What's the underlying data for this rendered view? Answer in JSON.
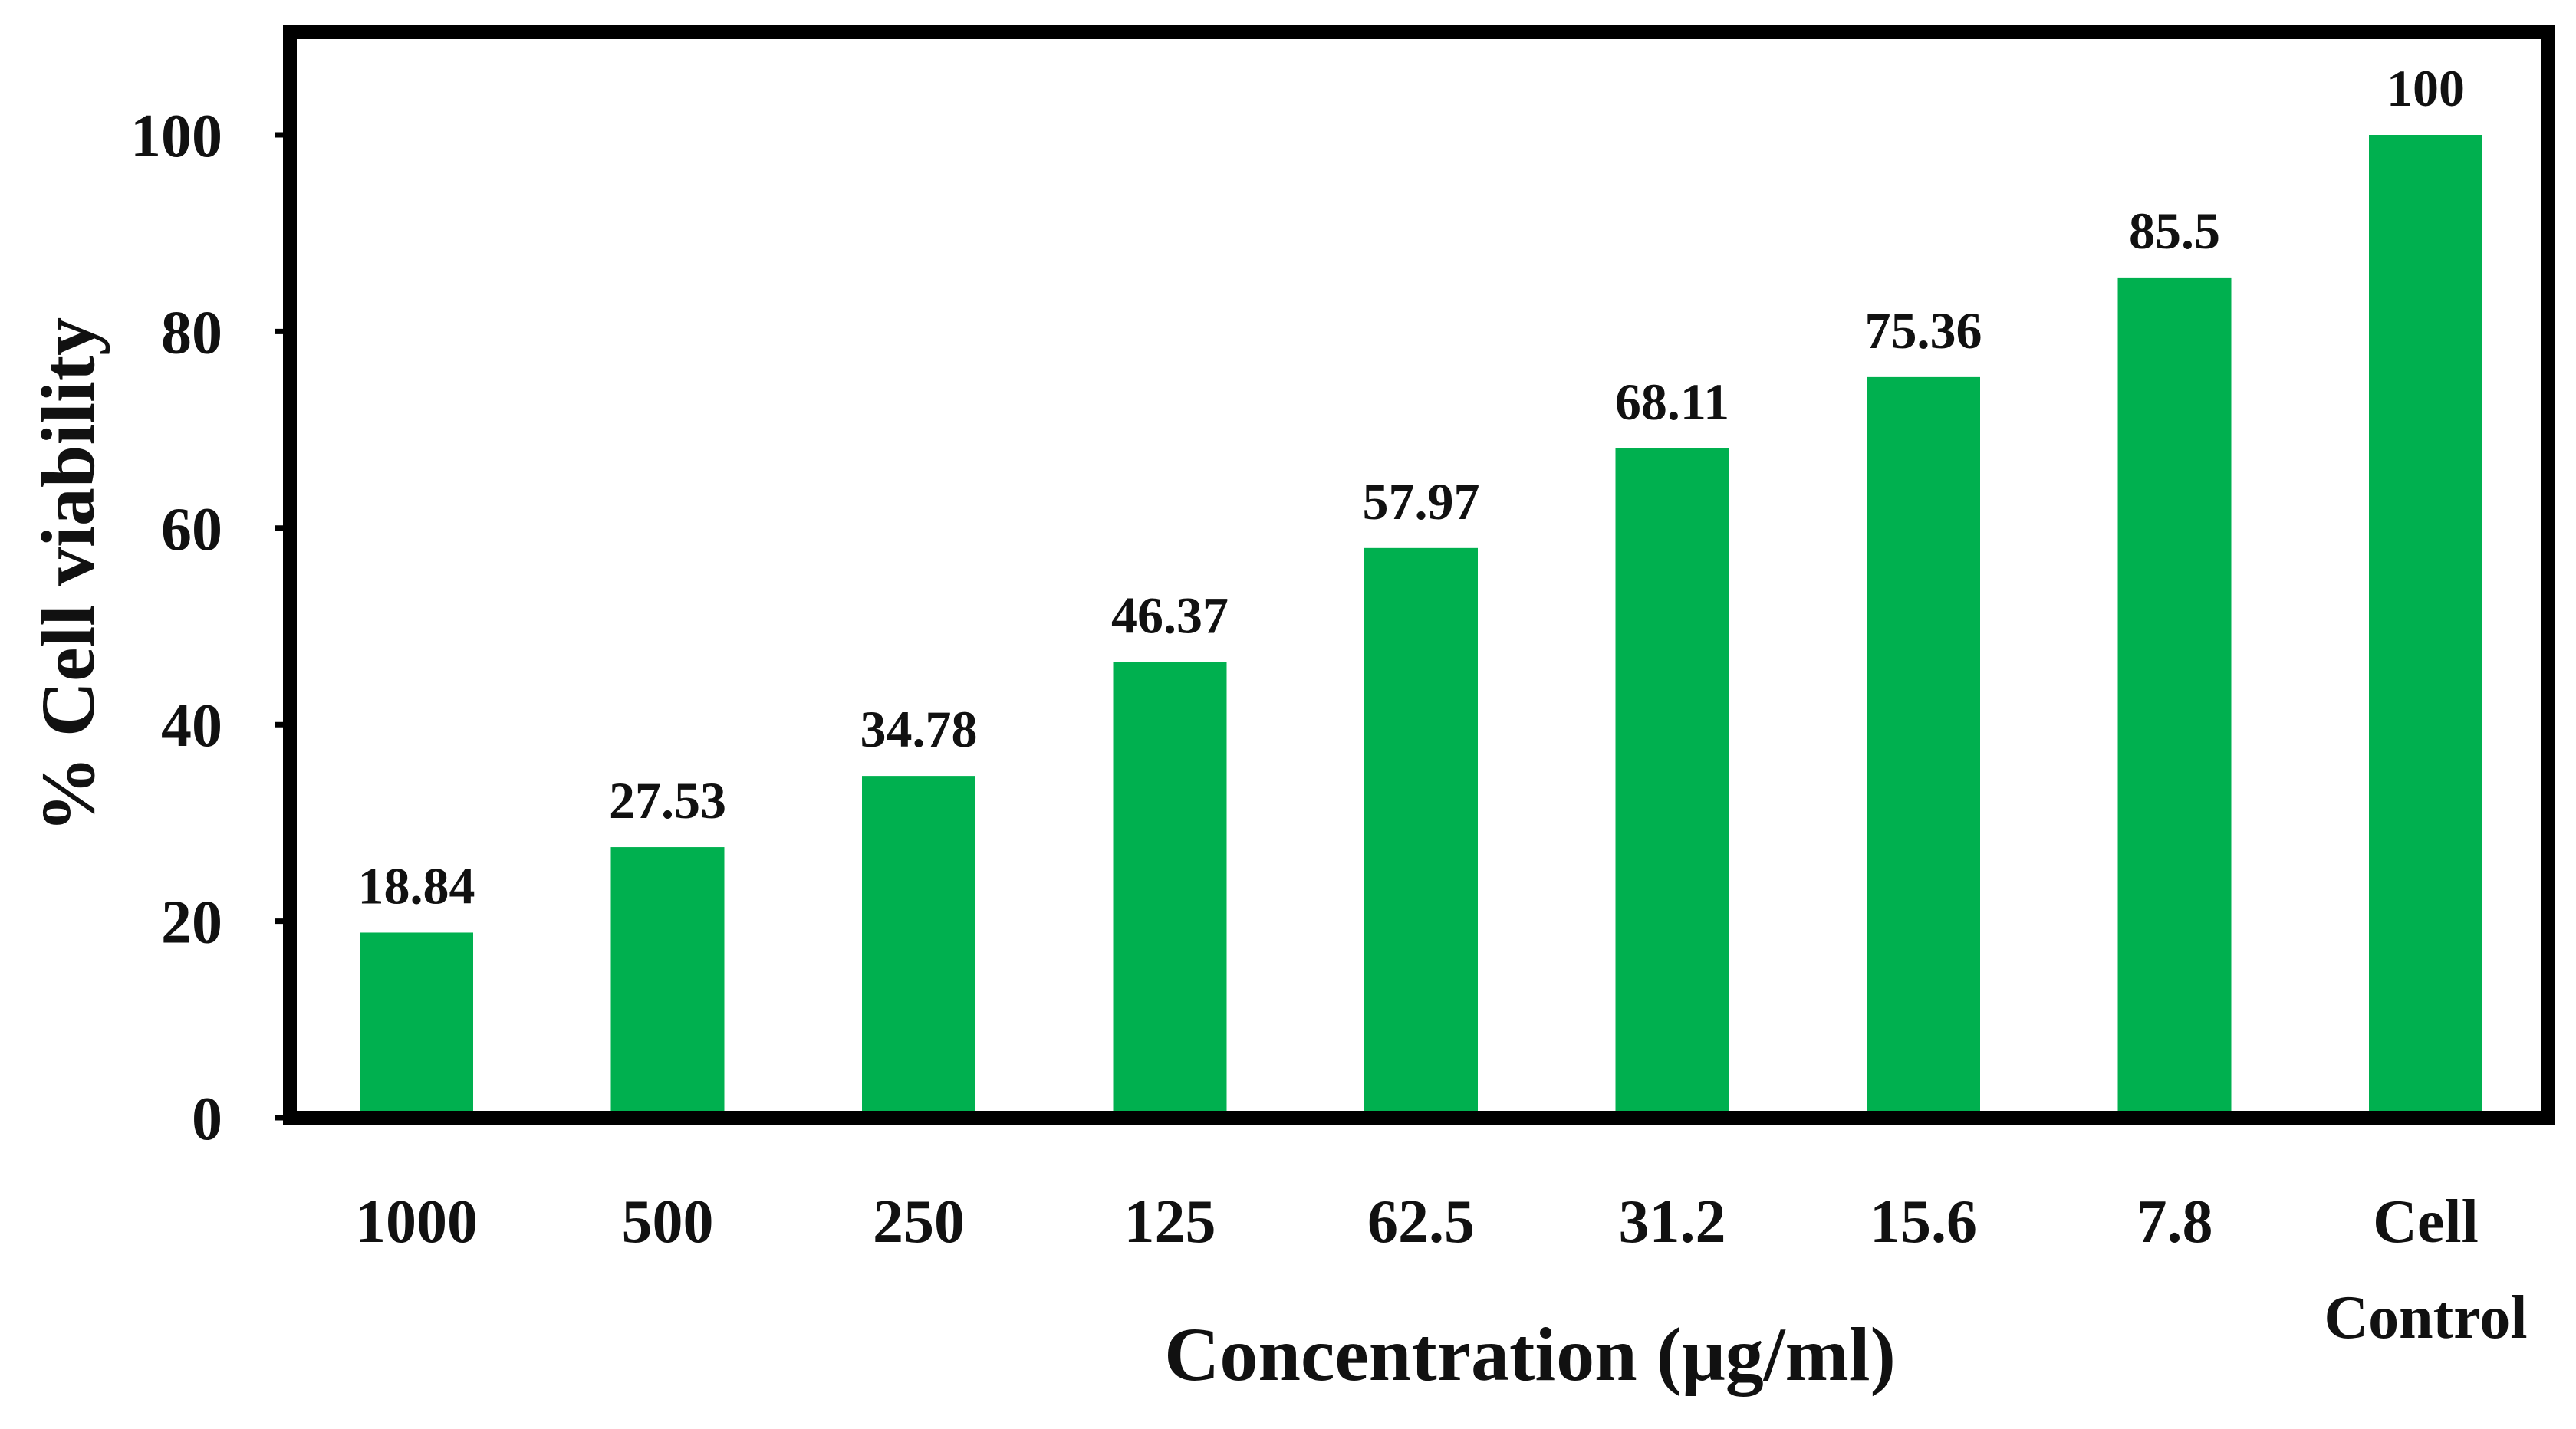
{
  "chart_data": {
    "type": "bar",
    "title": "",
    "xlabel": "Concentration (μg/ml)",
    "ylabel": "% Cell viability",
    "ylim": [
      0,
      110
    ],
    "yticks": [
      0,
      20,
      40,
      60,
      80,
      100
    ],
    "grid": false,
    "legend": "none",
    "categories": [
      [
        "1000"
      ],
      [
        "500"
      ],
      [
        "250"
      ],
      [
        "125"
      ],
      [
        "62.5"
      ],
      [
        "31.2"
      ],
      [
        "15.6"
      ],
      [
        "7.8"
      ],
      [
        "Cell",
        "Control"
      ]
    ],
    "values": [
      18.84,
      27.53,
      34.78,
      46.37,
      57.97,
      68.11,
      75.36,
      85.5,
      100
    ],
    "data_labels": [
      "18.84",
      "27.53",
      "34.78",
      "46.37",
      "57.97",
      "68.11",
      "75.36",
      "85.5",
      "100"
    ],
    "colors": {
      "bar": "#00b04f",
      "frame": "#000000",
      "text": "#111111"
    }
  }
}
